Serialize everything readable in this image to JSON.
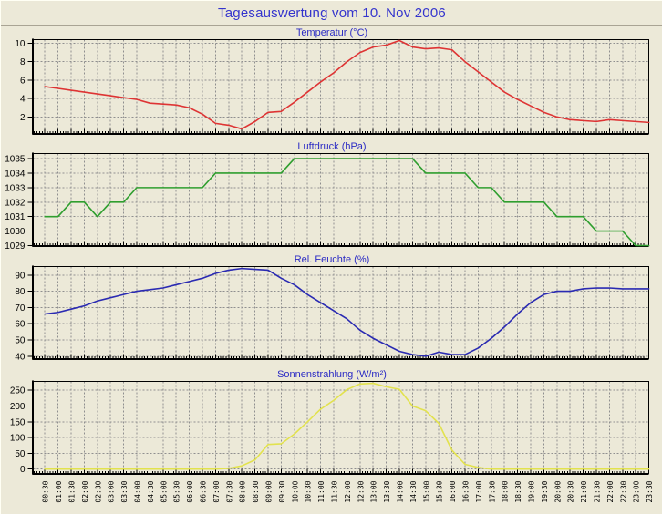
{
  "window": {
    "title": "Tagesauswertung vom 10. Nov 2006"
  },
  "colors": {
    "background": "#ece9d8",
    "main_title_text": "#3434cd",
    "chart_title_text": "#2b2bc4",
    "axis_text": "#000000",
    "temperature_line": "#de3434",
    "pressure_line": "#2f9e2f",
    "humidity_line": "#2a2ab2",
    "radiation_line": "#e2e24e"
  },
  "chart_data": [
    {
      "type": "line",
      "title": "Temperatur (°C)",
      "ylabel": "Temperatur",
      "unit": "°C",
      "color": "#de3434",
      "grid": true,
      "yticks": [
        2,
        4,
        6,
        8,
        10
      ],
      "ylim": [
        0.2,
        10.4
      ],
      "x": [
        "00:30",
        "01:00",
        "01:30",
        "02:00",
        "02:30",
        "03:00",
        "03:30",
        "04:00",
        "04:30",
        "05:00",
        "05:30",
        "06:00",
        "06:30",
        "07:00",
        "07:30",
        "08:00",
        "08:30",
        "09:00",
        "09:30",
        "10:00",
        "10:30",
        "11:00",
        "11:30",
        "12:00",
        "12:30",
        "13:00",
        "13:30",
        "14:00",
        "14:30",
        "15:00",
        "15:30",
        "16:00",
        "16:30",
        "17:00",
        "17:30",
        "18:00",
        "18:30",
        "19:00",
        "19:30",
        "20:00",
        "20:30",
        "21:00",
        "21:30",
        "22:00",
        "22:30",
        "23:00",
        "23:30"
      ],
      "values": [
        5.3,
        5.1,
        4.9,
        4.7,
        4.5,
        4.3,
        4.1,
        3.9,
        3.5,
        3.4,
        3.3,
        3.0,
        2.3,
        1.3,
        1.1,
        0.7,
        1.5,
        2.5,
        2.6,
        3.6,
        4.7,
        5.8,
        6.8,
        8.0,
        9.0,
        9.6,
        9.8,
        10.3,
        9.6,
        9.4,
        9.5,
        9.3,
        8.0,
        6.9,
        5.8,
        4.7,
        3.9,
        3.2,
        2.5,
        2.0,
        1.7,
        1.6,
        1.5,
        1.7,
        1.6,
        1.5,
        1.4
      ]
    },
    {
      "type": "line",
      "title": "Luftdruck (hPa)",
      "ylabel": "Luftdruck",
      "unit": "hPa",
      "color": "#2f9e2f",
      "grid": true,
      "yticks": [
        1029,
        1030,
        1031,
        1032,
        1033,
        1034,
        1035
      ],
      "ylim": [
        1029,
        1035.35
      ],
      "x": [
        "00:30",
        "01:00",
        "01:30",
        "02:00",
        "02:30",
        "03:00",
        "03:30",
        "04:00",
        "04:30",
        "05:00",
        "05:30",
        "06:00",
        "06:30",
        "07:00",
        "07:30",
        "08:00",
        "08:30",
        "09:00",
        "09:30",
        "10:00",
        "10:30",
        "11:00",
        "11:30",
        "12:00",
        "12:30",
        "13:00",
        "13:30",
        "14:00",
        "14:30",
        "15:00",
        "15:30",
        "16:00",
        "16:30",
        "17:00",
        "17:30",
        "18:00",
        "18:30",
        "19:00",
        "19:30",
        "20:00",
        "20:30",
        "21:00",
        "21:30",
        "22:00",
        "22:30",
        "23:00",
        "23:30"
      ],
      "values": [
        1031,
        1031,
        1032,
        1032,
        1031,
        1032,
        1032,
        1033,
        1033,
        1033,
        1033,
        1033,
        1033,
        1034,
        1034,
        1034,
        1034,
        1034,
        1034,
        1035,
        1035,
        1035,
        1035,
        1035,
        1035,
        1035,
        1035,
        1035,
        1035,
        1034,
        1034,
        1034,
        1034,
        1033,
        1033,
        1032,
        1032,
        1032,
        1032,
        1031,
        1031,
        1031,
        1030,
        1030,
        1030,
        1029,
        1029
      ]
    },
    {
      "type": "line",
      "title": "Rel. Feuchte (%)",
      "ylabel": "Rel. Feuchte",
      "unit": "%",
      "color": "#2a2ab2",
      "grid": true,
      "yticks": [
        40,
        50,
        60,
        70,
        80,
        90
      ],
      "ylim": [
        38.5,
        95.2
      ],
      "x": [
        "00:30",
        "01:00",
        "01:30",
        "02:00",
        "02:30",
        "03:00",
        "03:30",
        "04:00",
        "04:30",
        "05:00",
        "05:30",
        "06:00",
        "06:30",
        "07:00",
        "07:30",
        "08:00",
        "08:30",
        "09:00",
        "09:30",
        "10:00",
        "10:30",
        "11:00",
        "11:30",
        "12:00",
        "12:30",
        "13:00",
        "13:30",
        "14:00",
        "14:30",
        "15:00",
        "15:30",
        "16:00",
        "16:30",
        "17:00",
        "17:30",
        "18:00",
        "18:30",
        "19:00",
        "19:30",
        "20:00",
        "20:30",
        "21:00",
        "21:30",
        "22:00",
        "22:30",
        "23:00",
        "23:30"
      ],
      "values": [
        66,
        67,
        69,
        71,
        74,
        76,
        78,
        80,
        81,
        82,
        84,
        86,
        88,
        91,
        93,
        94,
        93.5,
        93,
        88,
        84,
        78,
        73,
        68,
        63,
        56,
        51,
        47,
        43,
        41,
        40,
        42.5,
        41,
        41,
        45,
        51,
        58,
        66,
        73,
        78,
        80,
        80,
        81.5,
        82,
        82,
        81.5,
        81.5,
        81.5
      ]
    },
    {
      "type": "line",
      "title": "Sonnenstrahlung (W/m²)",
      "ylabel": "Sonnenstrahlung",
      "unit": "W/m²",
      "color": "#e2e24e",
      "grid": true,
      "yticks": [
        0,
        50,
        100,
        150,
        200,
        250
      ],
      "ylim": [
        -14,
        278
      ],
      "x": [
        "00:30",
        "01:00",
        "01:30",
        "02:00",
        "02:30",
        "03:00",
        "03:30",
        "04:00",
        "04:30",
        "05:00",
        "05:30",
        "06:00",
        "06:30",
        "07:00",
        "07:30",
        "08:00",
        "08:30",
        "09:00",
        "09:30",
        "10:00",
        "10:30",
        "11:00",
        "11:30",
        "12:00",
        "12:30",
        "13:00",
        "13:30",
        "14:00",
        "14:30",
        "15:00",
        "15:30",
        "16:00",
        "16:30",
        "17:00",
        "17:30",
        "18:00",
        "18:30",
        "19:00",
        "19:30",
        "20:00",
        "20:30",
        "21:00",
        "21:30",
        "22:00",
        "22:30",
        "23:00",
        "23:30"
      ],
      "values": [
        0,
        0,
        0,
        0,
        0,
        0,
        0,
        0,
        0,
        0,
        0,
        0,
        0,
        0,
        2,
        10,
        29,
        78,
        80,
        111,
        150,
        190,
        218,
        252,
        270,
        272,
        261,
        253,
        200,
        185,
        145,
        60,
        15,
        5,
        0,
        0,
        0,
        0,
        0,
        0,
        0,
        0,
        0,
        0,
        0,
        0,
        0
      ]
    }
  ]
}
